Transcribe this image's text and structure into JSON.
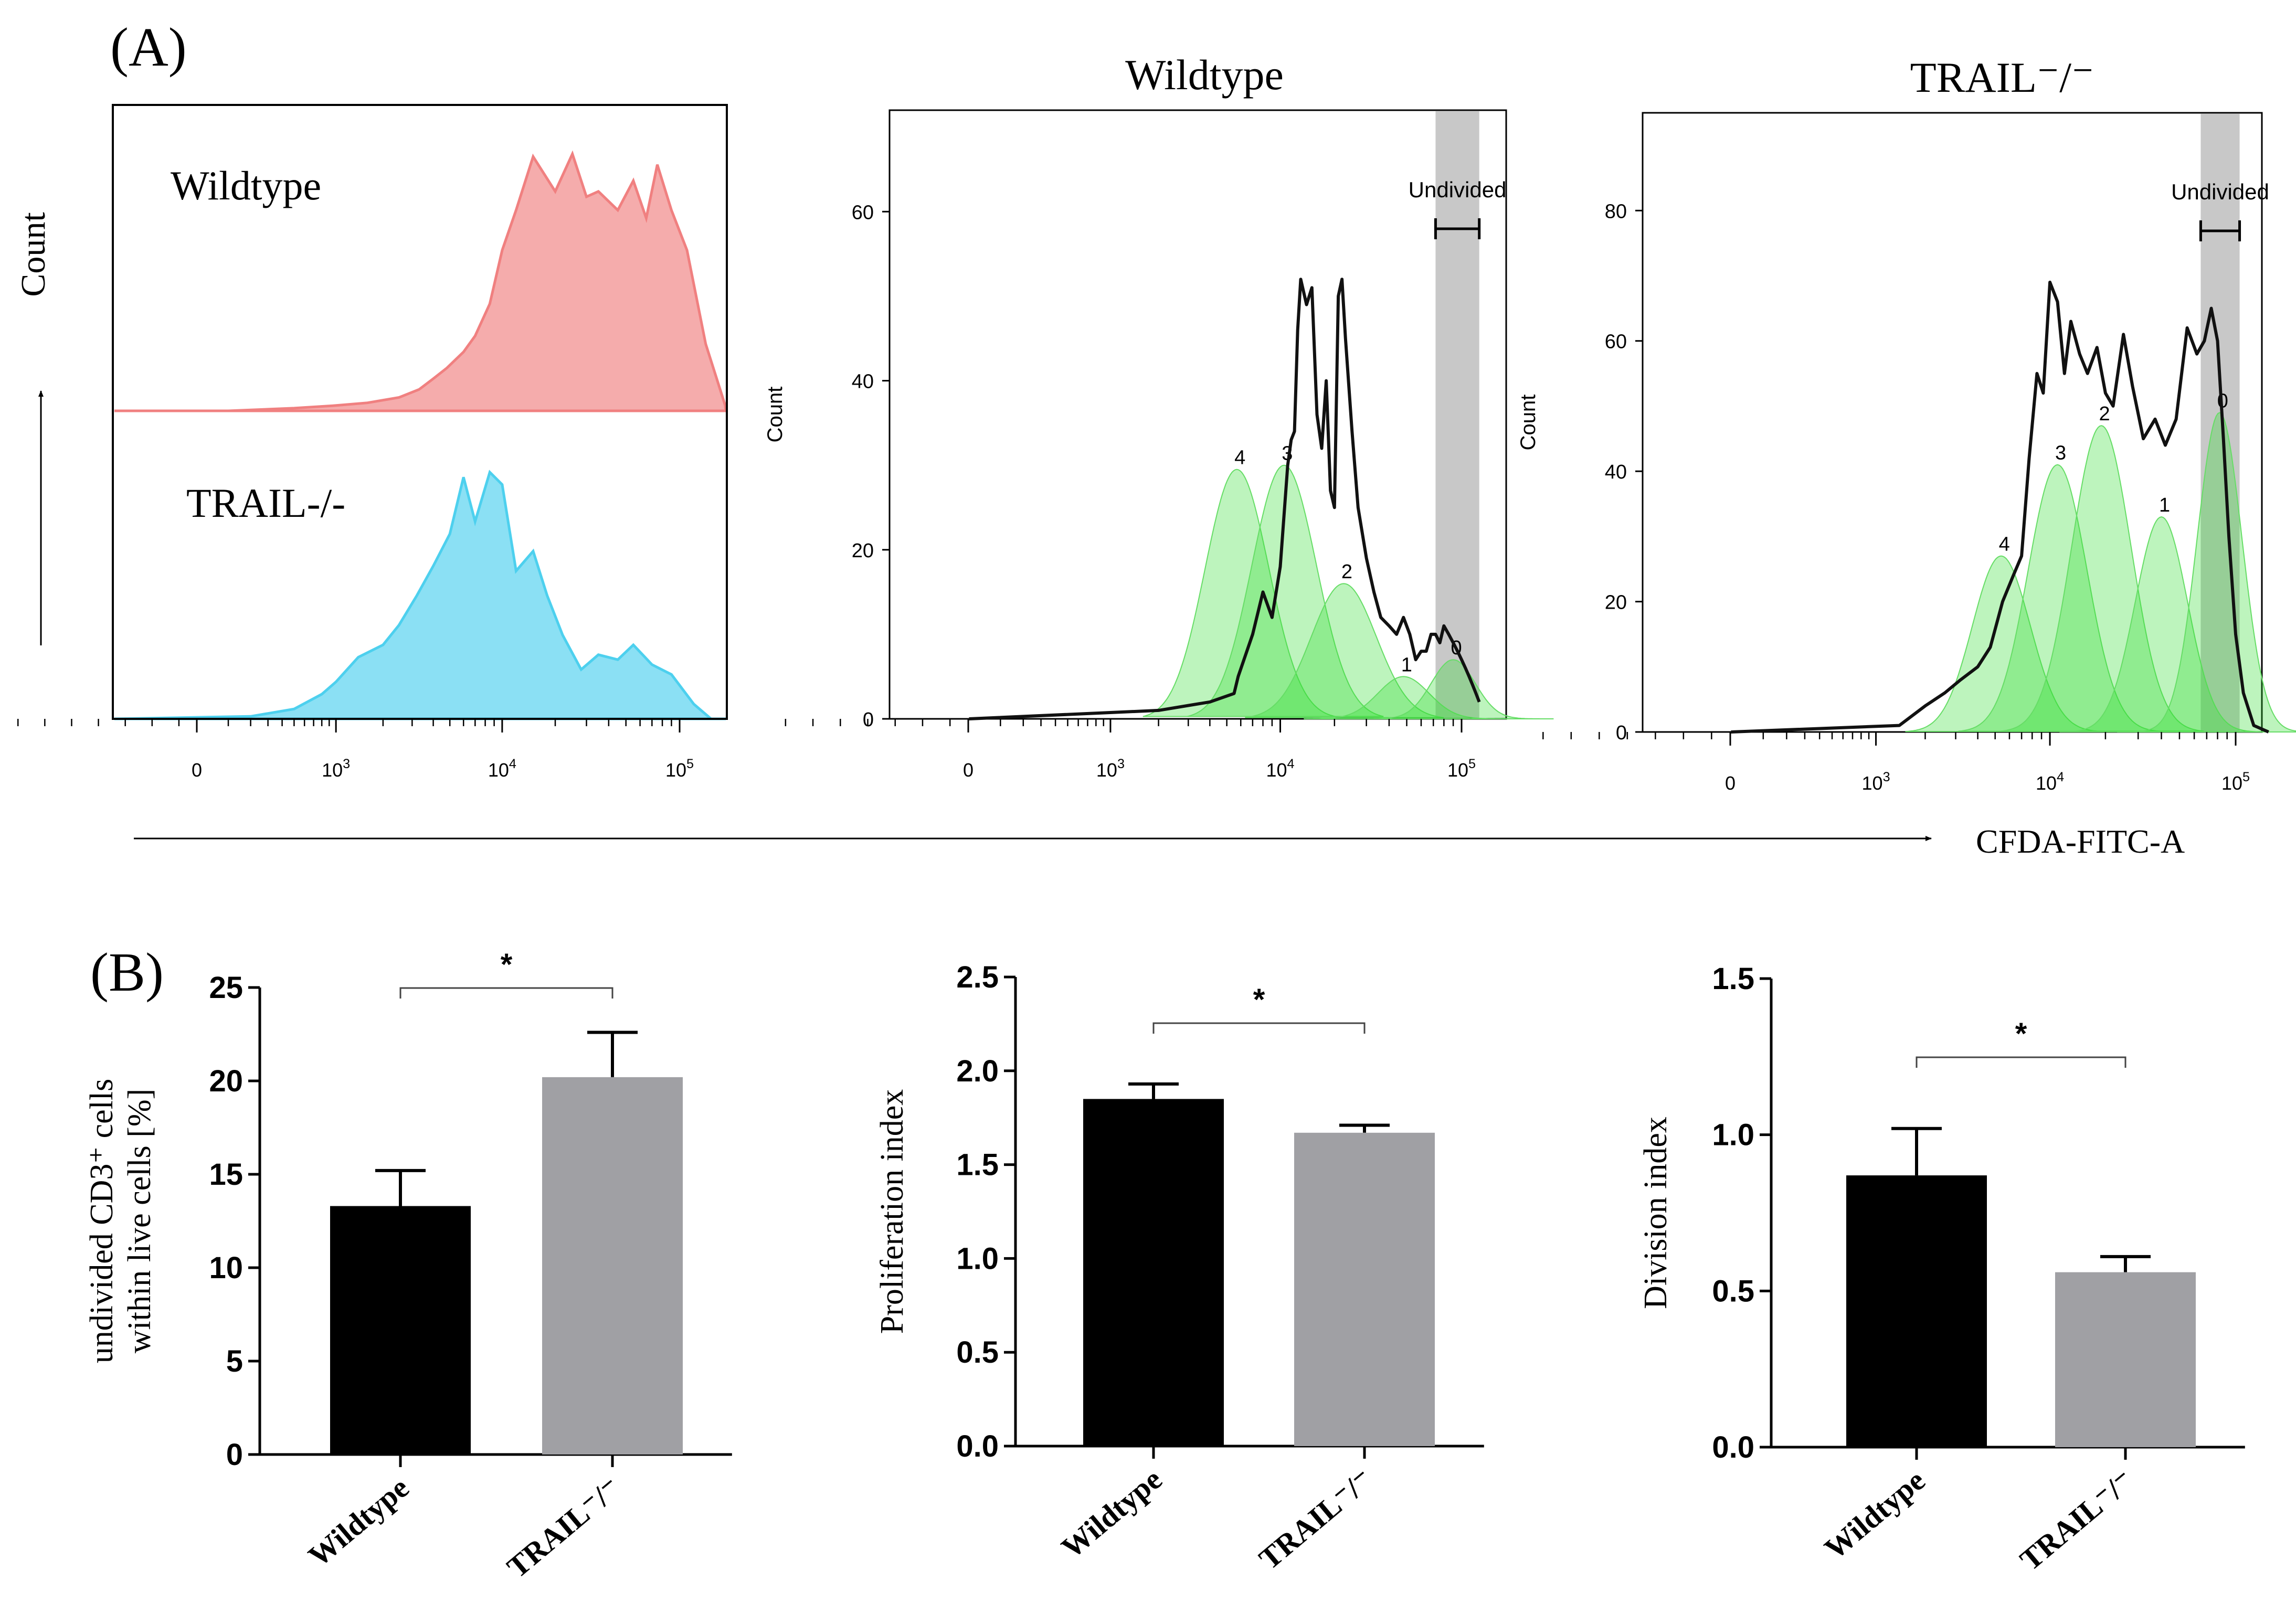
{
  "panels": {
    "A": "(A)",
    "B": "(B)"
  },
  "shared_x_axis": {
    "label": "CFDA-FITC-A",
    "ticks": [
      "0",
      "10",
      "10",
      "10"
    ],
    "tick_exponents": [
      "",
      "3",
      "4",
      "5"
    ]
  },
  "chart_data": [
    {
      "id": "overlay",
      "type": "area",
      "title": "",
      "ylabel": "Count",
      "xlabel": "CFDA-FITC-A",
      "xscale": "biexponential",
      "series": [
        {
          "name": "Wildtype",
          "color": "#f08080",
          "x": [
            -300,
            100,
            500,
            1000,
            1600,
            2500,
            3300,
            4000,
            4800,
            6000,
            7000,
            8500,
            10000,
            12000,
            15000,
            20000,
            25000,
            30000,
            35000,
            45000,
            55000,
            65000,
            75000,
            90000,
            110000,
            140000,
            180000
          ],
          "y": [
            0,
            0,
            1,
            2,
            3,
            5,
            8,
            12,
            16,
            22,
            28,
            40,
            60,
            75,
            95,
            82,
            96,
            80,
            82,
            75,
            86,
            72,
            92,
            75,
            60,
            25,
            2
          ]
        },
        {
          "name": "TRAIL-/-",
          "color": "#4dd0ee",
          "x": [
            -300,
            200,
            500,
            800,
            1000,
            1400,
            2000,
            2500,
            3200,
            4000,
            5000,
            6000,
            7000,
            8500,
            10000,
            12000,
            15000,
            18000,
            22000,
            28000,
            35000,
            45000,
            55000,
            70000,
            90000,
            120000,
            150000
          ],
          "y": [
            0,
            1,
            4,
            10,
            15,
            25,
            30,
            38,
            50,
            62,
            75,
            98,
            80,
            100,
            95,
            60,
            68,
            50,
            34,
            20,
            26,
            24,
            30,
            22,
            18,
            6,
            0
          ]
        }
      ]
    },
    {
      "id": "wt_modeling",
      "type": "area",
      "title": "Wildtype",
      "ylabel": "Count",
      "xscale": "biexponential",
      "ylim": [
        0,
        72
      ],
      "yticks": [
        0,
        20,
        40,
        60
      ],
      "gate": {
        "label": "Undivided",
        "x_range": [
          72000,
          125000
        ]
      },
      "generations": [
        {
          "label": "4",
          "peak_x": 5700,
          "peak_y": 29.5,
          "sigma_decades": 0.18
        },
        {
          "label": "3",
          "peak_x": 10500,
          "peak_y": 30,
          "sigma_decades": 0.18
        },
        {
          "label": "2",
          "peak_x": 22500,
          "peak_y": 16,
          "sigma_decades": 0.18
        },
        {
          "label": "1",
          "peak_x": 48000,
          "peak_y": 5,
          "sigma_decades": 0.14
        },
        {
          "label": "0",
          "peak_x": 90000,
          "peak_y": 7,
          "sigma_decades": 0.12
        }
      ],
      "total": {
        "name": "measured",
        "x": [
          2,
          2000,
          4000,
          5500,
          5800,
          7000,
          8000,
          9000,
          10000,
          11000,
          11500,
          12000,
          12500,
          13000,
          14000,
          15000,
          16000,
          17000,
          18000,
          19000,
          20000,
          21000,
          22000,
          23000,
          25000,
          27000,
          30000,
          33000,
          36000,
          40000,
          44000,
          48000,
          52000,
          56000,
          60000,
          64000,
          68000,
          72000,
          76000,
          80000,
          85000,
          90000,
          95000,
          100000,
          105000,
          110000,
          115000,
          120000,
          125000
        ],
        "y": [
          0,
          1,
          2,
          3,
          5,
          10,
          15,
          12,
          18,
          30,
          33,
          34,
          46,
          52,
          49,
          51,
          36,
          32,
          40,
          27,
          25,
          50,
          52,
          45,
          34,
          25,
          19,
          15,
          12,
          11,
          10,
          12,
          10,
          7,
          8,
          8,
          10,
          10,
          9,
          11,
          10,
          9,
          8,
          7,
          6,
          5,
          4,
          3,
          2
        ]
      }
    },
    {
      "id": "ko_modeling",
      "type": "area",
      "title": "TRAIL⁻/⁻",
      "ylabel": "Count",
      "xscale": "biexponential",
      "ylim": [
        0,
        95
      ],
      "yticks": [
        0,
        20,
        40,
        60,
        80
      ],
      "gate": {
        "label": "Undivided",
        "x_range": [
          65000,
          105000
        ]
      },
      "generations": [
        {
          "label": "4",
          "peak_x": 5400,
          "peak_y": 27,
          "sigma_decades": 0.16
        },
        {
          "label": "3",
          "peak_x": 11000,
          "peak_y": 41,
          "sigma_decades": 0.16
        },
        {
          "label": "2",
          "peak_x": 19000,
          "peak_y": 47,
          "sigma_decades": 0.16
        },
        {
          "label": "1",
          "peak_x": 40000,
          "peak_y": 33,
          "sigma_decades": 0.14
        },
        {
          "label": "0",
          "peak_x": 82000,
          "peak_y": 49,
          "sigma_decades": 0.12
        }
      ],
      "total": {
        "name": "measured",
        "x": [
          2,
          1400,
          2000,
          2600,
          3200,
          4000,
          4700,
          5500,
          6300,
          7000,
          7700,
          8500,
          9200,
          10000,
          11000,
          12000,
          13000,
          14500,
          16000,
          18000,
          20000,
          22000,
          25000,
          28000,
          32000,
          37000,
          42000,
          48000,
          55000,
          62000,
          68000,
          74000,
          80000,
          86000,
          92000,
          100000,
          110000,
          125000,
          150000
        ],
        "y": [
          0,
          1,
          4,
          6,
          8,
          10,
          13,
          20,
          24,
          27,
          42,
          55,
          52,
          69,
          66,
          55,
          63,
          58,
          55,
          59,
          52,
          50,
          61,
          53,
          45,
          48,
          44,
          48,
          62,
          58,
          60,
          65,
          60,
          45,
          30,
          15,
          6,
          1,
          0
        ]
      }
    },
    {
      "id": "undivided",
      "type": "bar",
      "categories": [
        "Wildtype",
        "TRAIL⁻/⁻"
      ],
      "values": [
        13.3,
        20.2
      ],
      "errors": [
        1.9,
        2.4
      ],
      "colors": [
        "#000000",
        "#a0a0a4"
      ],
      "ylabel_line1": "undivided CD3⁺ cells",
      "ylabel_line2": "within live cells [%]",
      "ylim": [
        0,
        25
      ],
      "yticks": [
        "0",
        "5",
        "10",
        "15",
        "20",
        "25"
      ],
      "significance": "*"
    },
    {
      "id": "proliferation",
      "type": "bar",
      "categories": [
        "Wildtype",
        "TRAIL⁻/⁻"
      ],
      "values": [
        1.85,
        1.67
      ],
      "errors": [
        0.08,
        0.04
      ],
      "colors": [
        "#000000",
        "#a0a0a4"
      ],
      "ylabel": "Proliferation index",
      "ylim": [
        0,
        2.5
      ],
      "yticks": [
        "0.0",
        "0.5",
        "1.0",
        "1.5",
        "2.0",
        "2.5"
      ],
      "significance": "*"
    },
    {
      "id": "division",
      "type": "bar",
      "categories": [
        "Wildtype",
        "TRAIL⁻/⁻"
      ],
      "values": [
        0.87,
        0.56
      ],
      "errors": [
        0.15,
        0.05
      ],
      "colors": [
        "#000000",
        "#a0a0a4"
      ],
      "ylabel": "Division index",
      "ylim": [
        0,
        1.5
      ],
      "yticks": [
        "0.0",
        "0.5",
        "1.0",
        "1.5"
      ],
      "significance": "*"
    }
  ]
}
